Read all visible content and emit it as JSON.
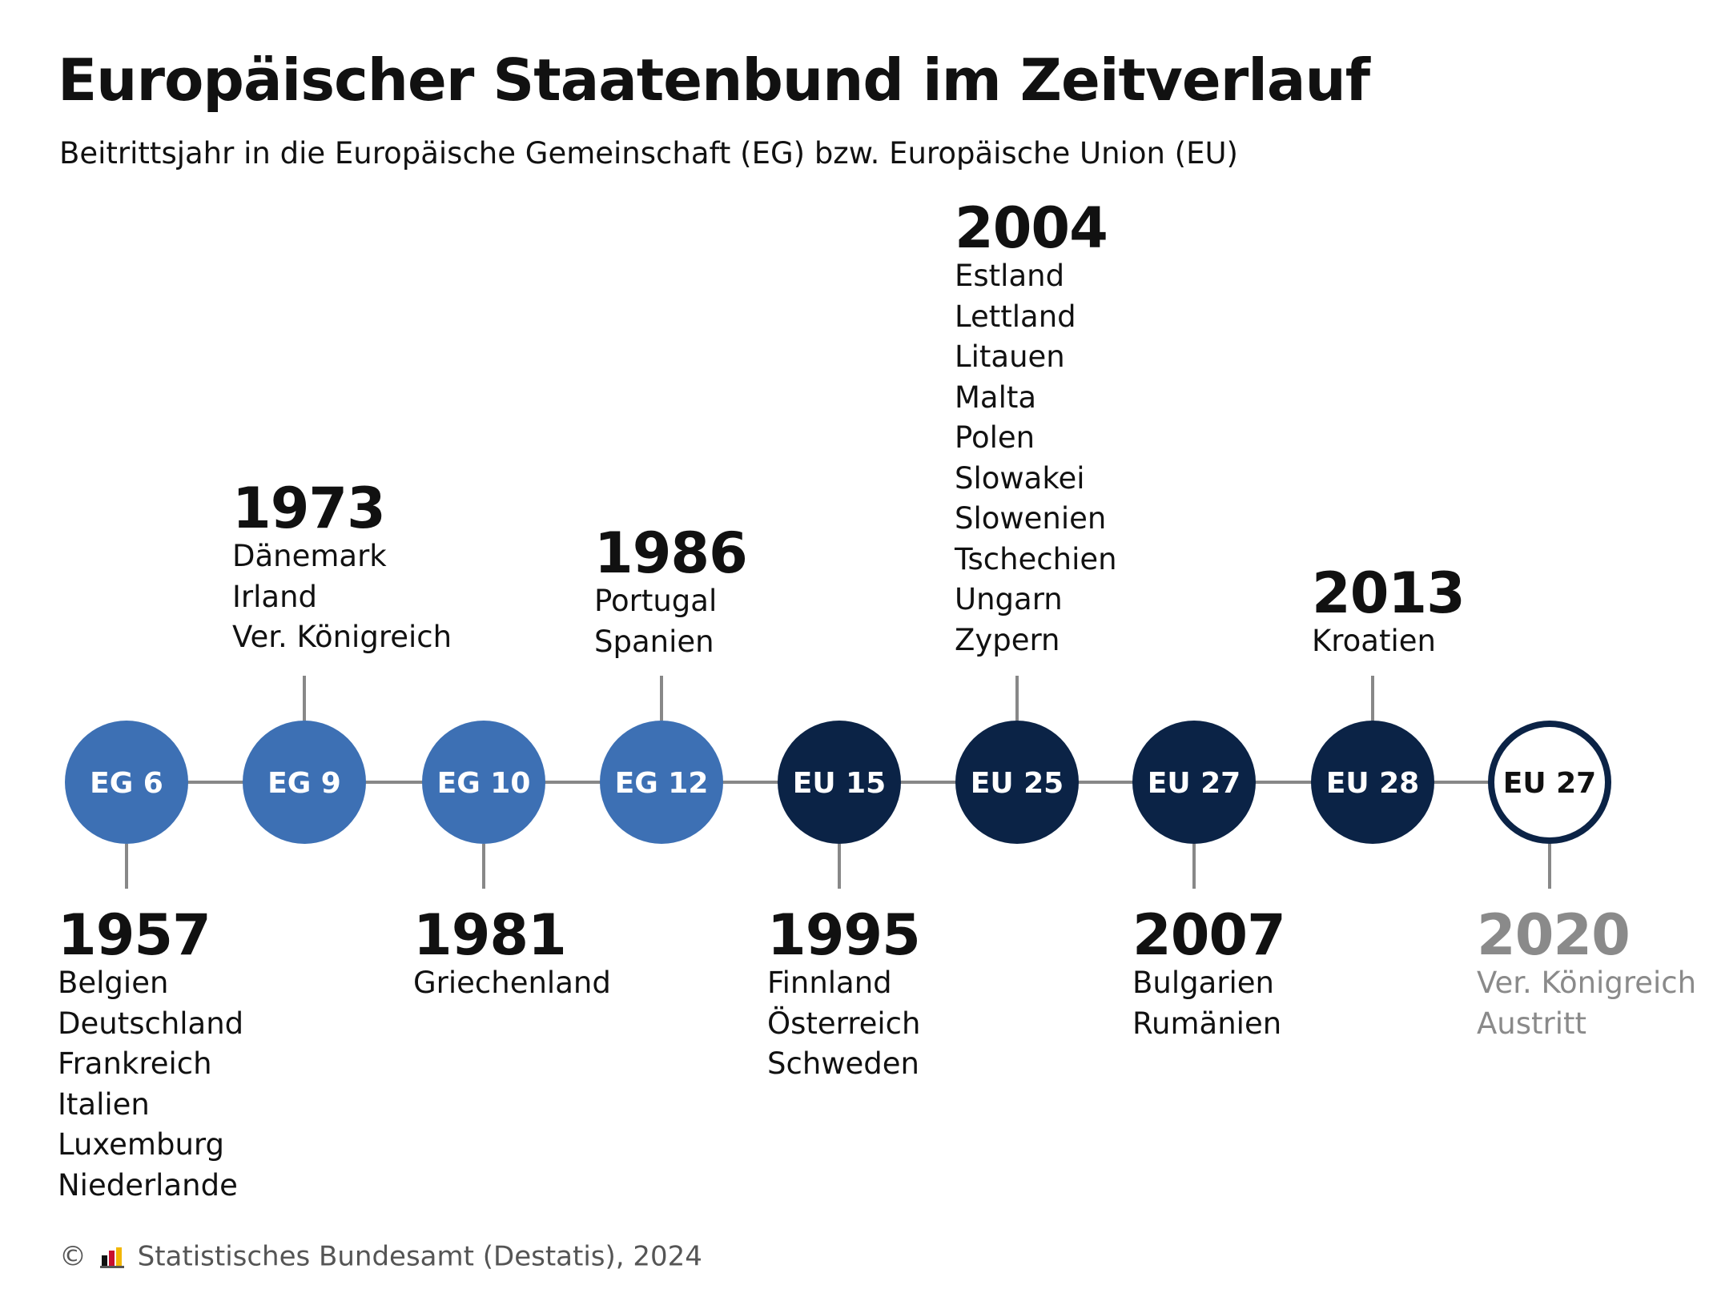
{
  "title": "Europäischer Staatenbund im Zeitverlauf",
  "subtitle": "Beitrittsjahr in die Europäische Gemeinschaft (EG) bzw. Europäische Union (EU)",
  "colors": {
    "eg": "#3d70b4",
    "eu": "#0b2346",
    "line": "#888888",
    "muted": "#8a8a8a"
  },
  "nodes": [
    {
      "label": "EG 6",
      "style": "eg"
    },
    {
      "label": "EG 9",
      "style": "eg"
    },
    {
      "label": "EG 10",
      "style": "eg"
    },
    {
      "label": "EG 12",
      "style": "eg"
    },
    {
      "label": "EU 15",
      "style": "eu"
    },
    {
      "label": "EU 25",
      "style": "eu"
    },
    {
      "label": "EU 27",
      "style": "eu"
    },
    {
      "label": "EU 28",
      "style": "eu"
    },
    {
      "label": "EU 27",
      "style": "outline"
    }
  ],
  "events": [
    {
      "year": "1957",
      "countries": [
        "Belgien",
        "Deutschland",
        "Frankreich",
        "Italien",
        "Luxemburg",
        "Niederlande"
      ]
    },
    {
      "year": "1973",
      "countries": [
        "Dänemark",
        "Irland",
        "Ver. Königreich"
      ]
    },
    {
      "year": "1981",
      "countries": [
        "Griechenland"
      ]
    },
    {
      "year": "1986",
      "countries": [
        "Portugal",
        "Spanien"
      ]
    },
    {
      "year": "1995",
      "countries": [
        "Finnland",
        "Österreich",
        "Schweden"
      ]
    },
    {
      "year": "2004",
      "countries": [
        "Estland",
        "Lettland",
        "Litauen",
        "Malta",
        "Polen",
        "Slowakei",
        "Slowenien",
        "Tschechien",
        "Ungarn",
        "Zypern"
      ]
    },
    {
      "year": "2007",
      "countries": [
        "Bulgarien",
        "Rumänien"
      ]
    },
    {
      "year": "2013",
      "countries": [
        "Kroatien"
      ]
    },
    {
      "year": "2020",
      "countries": [
        "Ver. Königreich",
        "Austritt"
      ]
    }
  ],
  "footer": {
    "copyright": "©",
    "source": "Statistisches Bundesamt (Destatis), 2024"
  }
}
